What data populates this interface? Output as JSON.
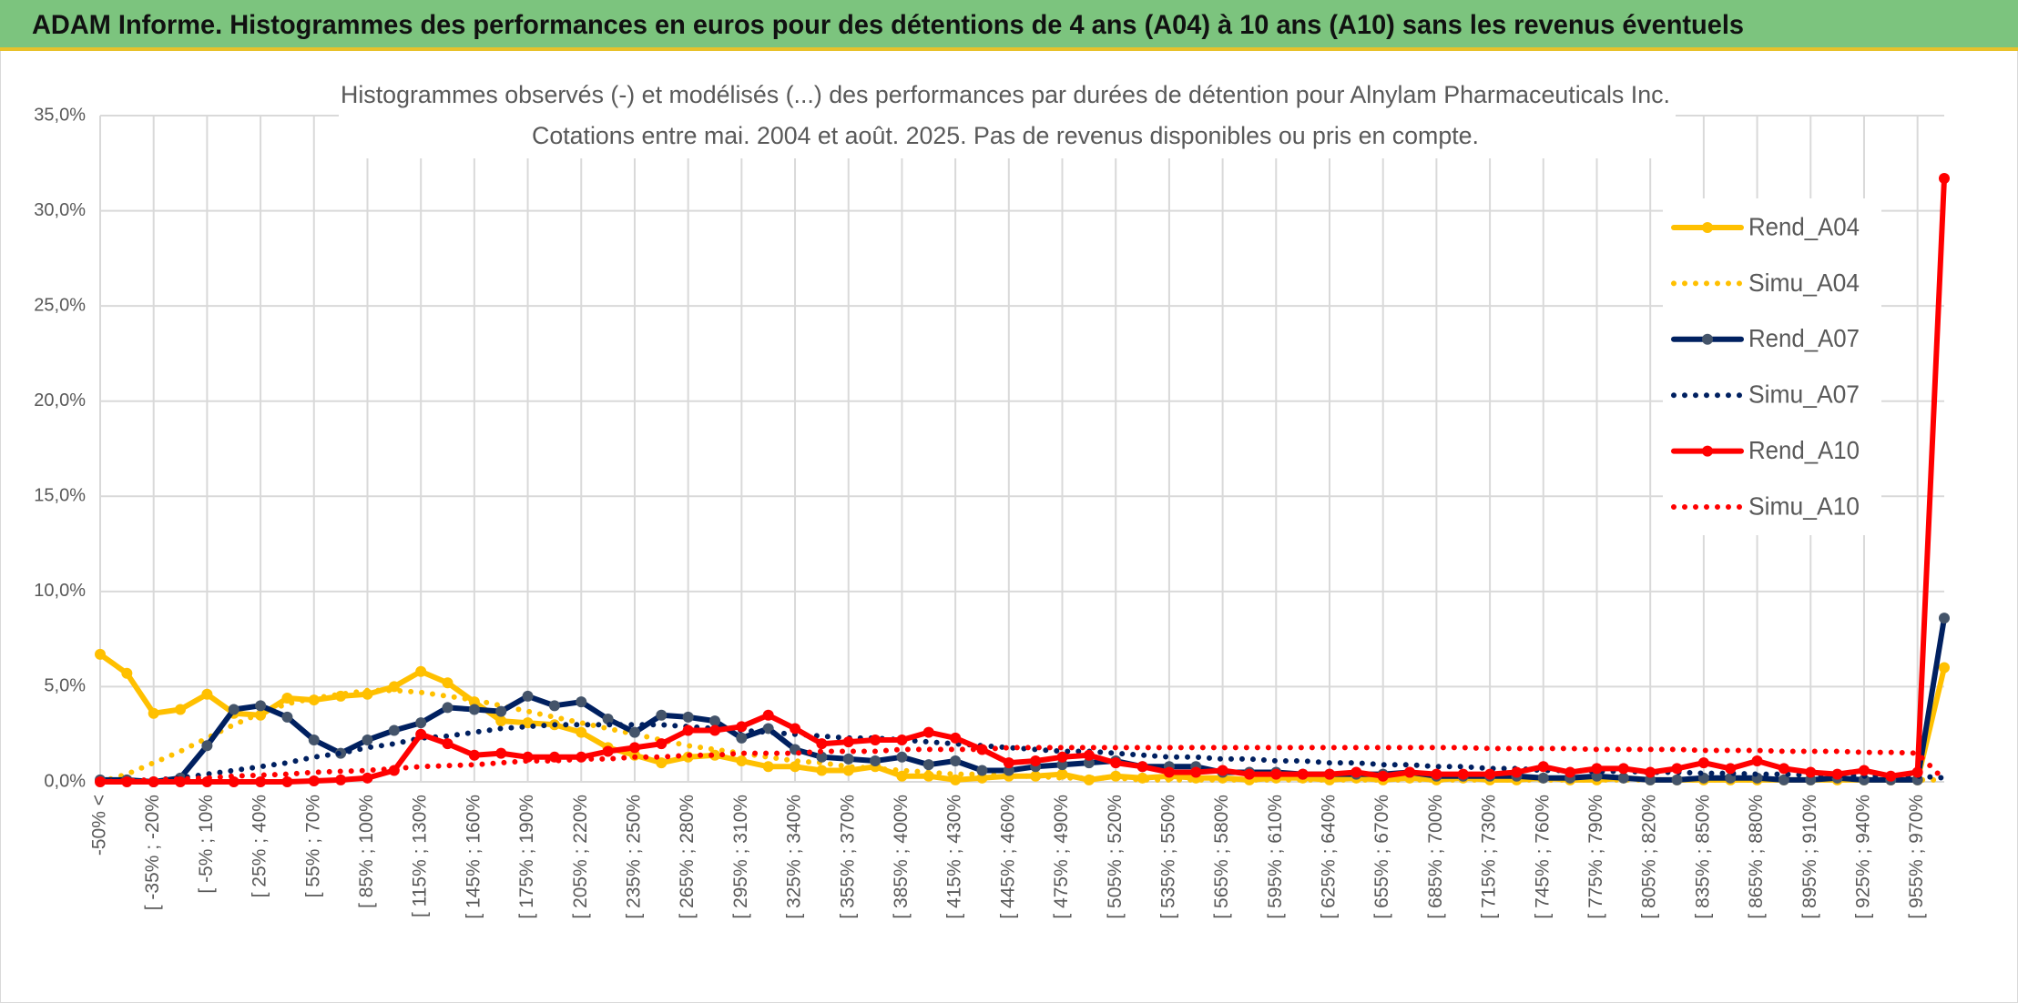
{
  "header": {
    "title": "ADAM Informe. Histogrammes des performances en euros pour des détentions de 4 ans (A04) à 10 ans (A10) sans les revenus éventuels"
  },
  "chart_data": {
    "type": "line",
    "title": "Histogrammes observés (-) et modélisés (...) des performances par durées de détention pour Alnylam Pharmaceuticals Inc.",
    "subtitle": "Cotations entre mai. 2004 et août. 2025. Pas de revenus disponibles ou pris en compte.",
    "categories": [
      "-50% <",
      null,
      "[ -35% ; -20%",
      null,
      "[ -5% ; 10%",
      null,
      "[ 25% ; 40%",
      null,
      "[ 55% ; 70%",
      null,
      "[ 85% ; 100%",
      null,
      "[ 115% ; 130%",
      null,
      "[ 145% ; 160%",
      null,
      "[ 175% ; 190%",
      null,
      "[ 205% ; 220%",
      null,
      "[ 235% ; 250%",
      null,
      "[ 265% ; 280%",
      null,
      "[ 295% ; 310%",
      null,
      "[ 325% ; 340%",
      null,
      "[ 355% ; 370%",
      null,
      "[ 385% ; 400%",
      null,
      "[ 415% ; 430%",
      null,
      "[ 445% ; 460%",
      null,
      "[ 475% ; 490%",
      null,
      "[ 505% ; 520%",
      null,
      "[ 535% ; 550%",
      null,
      "[ 565% ; 580%",
      null,
      "[ 595% ; 610%",
      null,
      "[ 625% ; 640%",
      null,
      "[ 655% ; 670%",
      null,
      "[ 685% ; 700%",
      null,
      "[ 715% ; 730%",
      null,
      "[ 745% ; 760%",
      null,
      "[ 775% ; 790%",
      null,
      "[ 805% ; 820%",
      null,
      "[ 835% ; 850%",
      null,
      "[ 865% ; 880%",
      null,
      "[ 895% ; 910%",
      null,
      "[ 925% ; 940%",
      null,
      "[ 955% ; 970%",
      null
    ],
    "series": [
      {
        "name": "Rend_A04",
        "color": "#FFC000",
        "marker_color": "#FFC000",
        "style": "solid",
        "values": [
          6.7,
          5.7,
          3.6,
          3.8,
          4.6,
          3.6,
          3.5,
          4.4,
          4.3,
          4.5,
          4.6,
          5.0,
          5.8,
          5.2,
          4.2,
          3.2,
          3.1,
          3.0,
          2.6,
          1.8,
          1.4,
          1.0,
          1.3,
          1.4,
          1.1,
          0.8,
          0.8,
          0.6,
          0.6,
          0.8,
          0.3,
          0.3,
          0.1,
          0.2,
          0.3,
          0.3,
          0.4,
          0.1,
          0.3,
          0.2,
          0.3,
          0.2,
          0.2,
          0.1,
          0.2,
          0.2,
          0.1,
          0.2,
          0.1,
          0.2,
          0.1,
          0.2,
          0.1,
          0.1,
          0.2,
          0.1,
          0.1,
          0.2,
          0.1,
          0.1,
          0.1,
          0.1,
          0.1,
          0.1,
          0.1,
          0.1,
          0.1,
          0.1,
          0.1,
          6.0
        ]
      },
      {
        "name": "Simu_A04",
        "color": "#FFC000",
        "style": "dotted",
        "values": [
          0.0,
          0.4,
          1.0,
          1.6,
          2.3,
          3.0,
          3.6,
          4.1,
          4.4,
          4.6,
          4.8,
          4.8,
          4.7,
          4.5,
          4.3,
          4.0,
          3.7,
          3.4,
          3.1,
          2.8,
          2.5,
          2.2,
          1.9,
          1.7,
          1.5,
          1.3,
          1.1,
          1.0,
          0.8,
          0.7,
          0.6,
          0.5,
          0.4,
          0.4,
          0.3,
          0.3,
          0.2,
          0.2,
          0.2,
          0.1,
          0.1,
          0.1,
          0.1,
          0.1,
          0.1,
          0.1,
          0.1,
          0.1,
          0.1,
          0.1,
          0.1,
          0.1,
          0.1,
          0.1,
          0.1,
          0.1,
          0.1,
          0.1,
          0.1,
          0.1,
          0.1,
          0.1,
          0.1,
          0.1,
          0.1,
          0.1,
          0.1,
          0.1,
          0.1,
          0.1
        ]
      },
      {
        "name": "Rend_A07",
        "color": "#002060",
        "marker_color": "#44546A",
        "style": "solid",
        "values": [
          0.1,
          0.1,
          0.0,
          0.2,
          1.9,
          3.8,
          4.0,
          3.4,
          2.2,
          1.5,
          2.2,
          2.7,
          3.1,
          3.9,
          3.8,
          3.7,
          4.5,
          4.0,
          4.2,
          3.3,
          2.6,
          3.5,
          3.4,
          3.2,
          2.3,
          2.8,
          1.7,
          1.3,
          1.2,
          1.1,
          1.3,
          0.9,
          1.1,
          0.6,
          0.6,
          0.8,
          0.9,
          1.0,
          1.1,
          0.8,
          0.8,
          0.8,
          0.5,
          0.5,
          0.5,
          0.4,
          0.4,
          0.4,
          0.4,
          0.5,
          0.3,
          0.3,
          0.3,
          0.3,
          0.2,
          0.2,
          0.3,
          0.2,
          0.1,
          0.1,
          0.2,
          0.2,
          0.2,
          0.1,
          0.1,
          0.2,
          0.1,
          0.1,
          0.1,
          8.6
        ]
      },
      {
        "name": "Simu_A07",
        "color": "#002060",
        "style": "dotted",
        "values": [
          0.0,
          0.05,
          0.1,
          0.2,
          0.4,
          0.6,
          0.8,
          1.0,
          1.3,
          1.5,
          1.8,
          2.0,
          2.3,
          2.4,
          2.6,
          2.8,
          2.9,
          3.0,
          3.0,
          3.0,
          3.0,
          3.0,
          2.9,
          2.8,
          2.7,
          2.6,
          2.5,
          2.4,
          2.3,
          2.3,
          2.2,
          2.1,
          2.0,
          1.9,
          1.8,
          1.7,
          1.6,
          1.6,
          1.5,
          1.4,
          1.3,
          1.3,
          1.2,
          1.2,
          1.1,
          1.1,
          1.0,
          1.0,
          0.9,
          0.9,
          0.8,
          0.8,
          0.7,
          0.7,
          0.6,
          0.6,
          0.55,
          0.55,
          0.5,
          0.5,
          0.45,
          0.45,
          0.4,
          0.4,
          0.35,
          0.35,
          0.3,
          0.3,
          0.3,
          0.2
        ]
      },
      {
        "name": "Rend_A10",
        "color": "#FF0000",
        "marker_color": "#FF0000",
        "style": "solid",
        "values": [
          0.0,
          0.0,
          0.0,
          0.0,
          0.0,
          0.0,
          0.0,
          0.0,
          0.05,
          0.1,
          0.2,
          0.6,
          2.5,
          2.0,
          1.4,
          1.5,
          1.3,
          1.3,
          1.3,
          1.6,
          1.8,
          2.0,
          2.7,
          2.7,
          2.9,
          3.5,
          2.8,
          2.0,
          2.1,
          2.2,
          2.2,
          2.6,
          2.3,
          1.7,
          1.0,
          1.1,
          1.3,
          1.4,
          1.0,
          0.8,
          0.5,
          0.5,
          0.6,
          0.4,
          0.4,
          0.4,
          0.4,
          0.5,
          0.3,
          0.5,
          0.4,
          0.4,
          0.4,
          0.5,
          0.8,
          0.5,
          0.7,
          0.7,
          0.5,
          0.7,
          1.0,
          0.7,
          1.1,
          0.7,
          0.5,
          0.4,
          0.6,
          0.3,
          0.5,
          31.7
        ]
      },
      {
        "name": "Simu_A10",
        "color": "#FF0000",
        "style": "dotted",
        "values": [
          0.0,
          0.05,
          0.1,
          0.15,
          0.2,
          0.3,
          0.35,
          0.4,
          0.5,
          0.55,
          0.6,
          0.7,
          0.8,
          0.85,
          0.9,
          1.0,
          1.1,
          1.1,
          1.2,
          1.2,
          1.3,
          1.3,
          1.4,
          1.4,
          1.5,
          1.5,
          1.5,
          1.6,
          1.6,
          1.6,
          1.7,
          1.7,
          1.7,
          1.7,
          1.8,
          1.8,
          1.8,
          1.8,
          1.8,
          1.8,
          1.8,
          1.8,
          1.8,
          1.8,
          1.8,
          1.8,
          1.8,
          1.8,
          1.8,
          1.8,
          1.8,
          1.8,
          1.75,
          1.75,
          1.75,
          1.75,
          1.7,
          1.7,
          1.7,
          1.7,
          1.65,
          1.65,
          1.65,
          1.6,
          1.6,
          1.6,
          1.55,
          1.55,
          1.5,
          0.1
        ]
      }
    ],
    "ylim": [
      0,
      35
    ],
    "yticks": [
      {
        "value": 0,
        "label": "0,0%"
      },
      {
        "value": 5,
        "label": "5,0%"
      },
      {
        "value": 10,
        "label": "10,0%"
      },
      {
        "value": 15,
        "label": "15,0%"
      },
      {
        "value": 20,
        "label": "20,0%"
      },
      {
        "value": 25,
        "label": "25,0%"
      },
      {
        "value": 30,
        "label": "30,0%"
      },
      {
        "value": 35,
        "label": "35,0%"
      }
    ],
    "grid": true,
    "legend": "right"
  }
}
